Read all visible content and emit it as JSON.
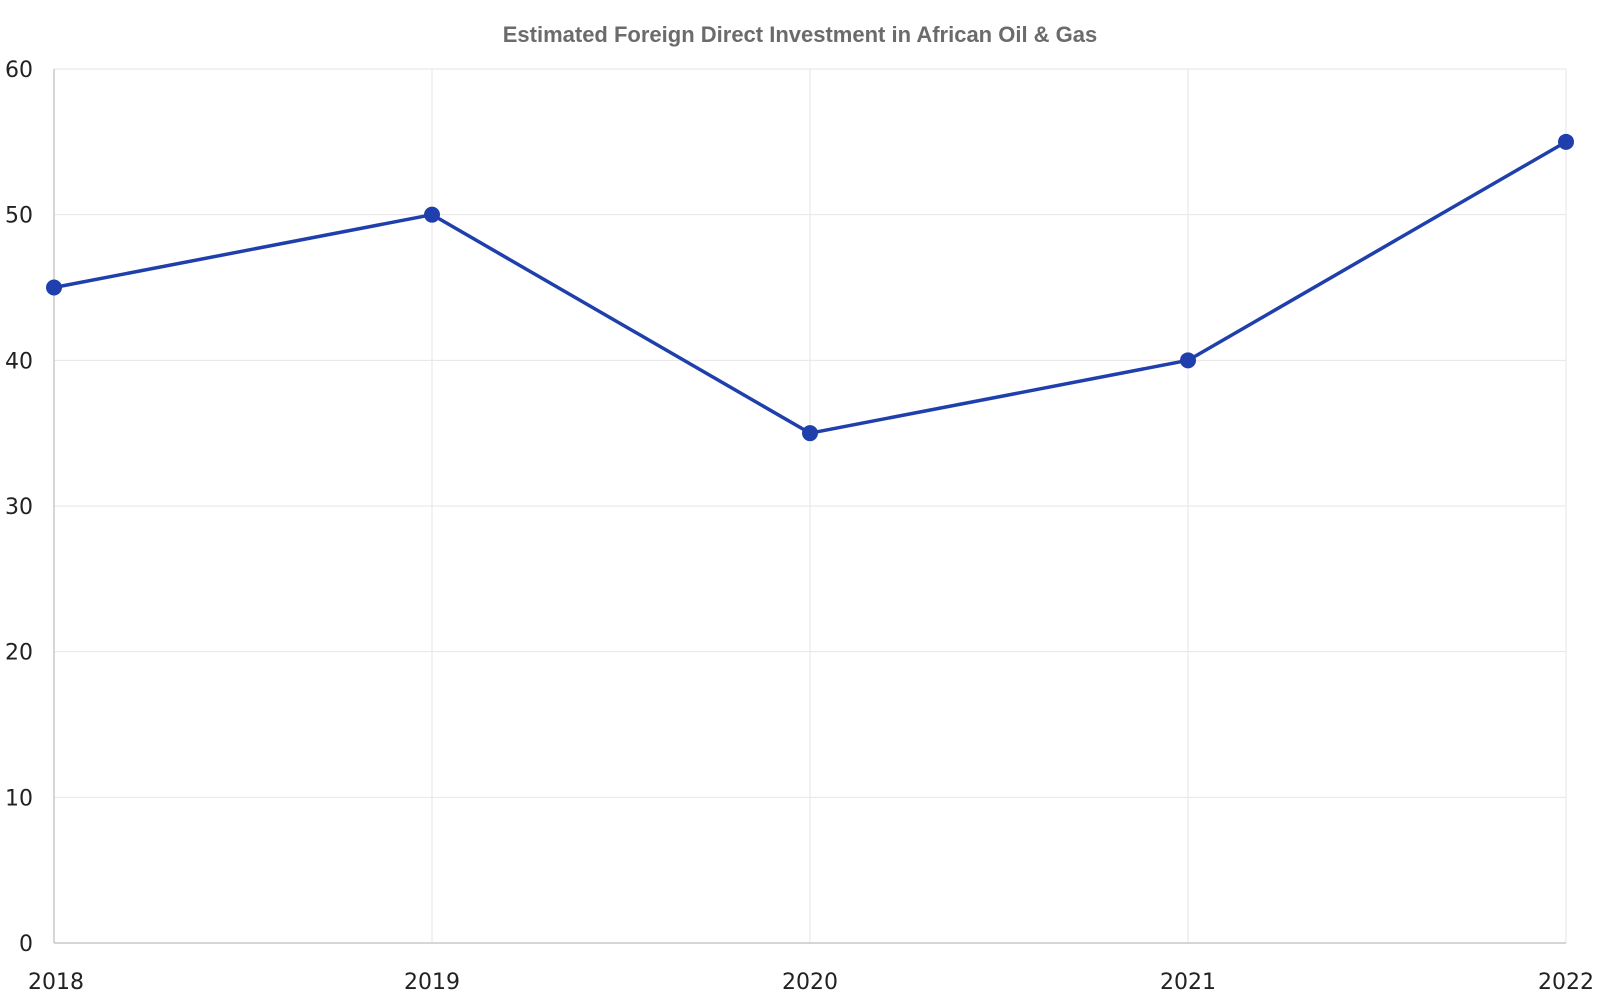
{
  "chart_data": {
    "type": "line",
    "title": "Estimated Foreign Direct Investment in African Oil & Gas",
    "xlabel": "",
    "ylabel": "",
    "x": [
      "2018",
      "2019",
      "2020",
      "2021",
      "2022"
    ],
    "series": [
      {
        "values": [
          45,
          50,
          35,
          40,
          55
        ],
        "color": "#1f3fad"
      }
    ],
    "ylim": [
      0,
      60
    ],
    "yticks": [
      0,
      10,
      20,
      30,
      40,
      50,
      60
    ],
    "grid": true,
    "legend": "none"
  }
}
